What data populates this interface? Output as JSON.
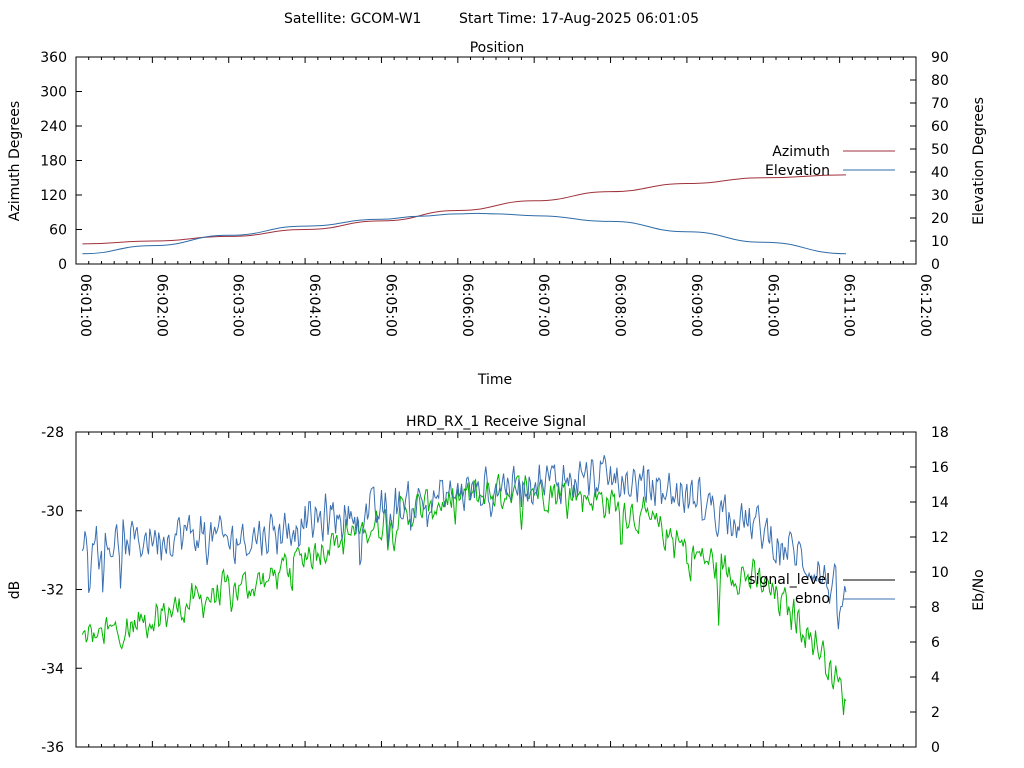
{
  "header": {
    "satellite_label": "Satellite: GCOM-W1",
    "start_time_label": "Start Time: 17-Aug-2025 06:01:05"
  },
  "colors": {
    "azimuth": "#a0323c",
    "elevation": "#2f6ca8",
    "signal_level": "#000000",
    "ebno_line": "#3a6fb0",
    "green_trace": "#00b400"
  },
  "chart_data": [
    {
      "type": "line",
      "title": "Position",
      "xlabel": "Time",
      "ylabel": "Azimuth Degrees",
      "y2label": "Elevation Degrees",
      "xlim": [
        "06:01:00",
        "06:12:00"
      ],
      "ylim": [
        0,
        360
      ],
      "y2lim": [
        0,
        90
      ],
      "xticks": [
        "06:01:00",
        "06:02:00",
        "06:03:00",
        "06:04:00",
        "06:05:00",
        "06:06:00",
        "06:07:00",
        "06:08:00",
        "06:09:00",
        "06:10:00",
        "06:11:00",
        "06:12:00"
      ],
      "yticks": [
        "0",
        "60",
        "120",
        "180",
        "240",
        "300",
        "360"
      ],
      "y2ticks": [
        "0",
        "10",
        "20",
        "30",
        "40",
        "50",
        "60",
        "70",
        "80",
        "90"
      ],
      "legend_position": "right",
      "series": [
        {
          "name": "Azimuth",
          "axis": "y",
          "x": [
            "06:01:05",
            "06:02:00",
            "06:03:00",
            "06:04:00",
            "06:05:00",
            "06:06:00",
            "06:07:00",
            "06:08:00",
            "06:09:00",
            "06:10:00",
            "06:11:05"
          ],
          "values": [
            35,
            40,
            48,
            60,
            75,
            93,
            110,
            126,
            140,
            150,
            155
          ]
        },
        {
          "name": "Elevation",
          "axis": "y2",
          "x": [
            "06:01:05",
            "06:02:00",
            "06:03:00",
            "06:04:00",
            "06:05:00",
            "06:05:30",
            "06:06:00",
            "06:06:15",
            "06:06:30",
            "06:07:00",
            "06:08:00",
            "06:09:00",
            "06:10:00",
            "06:11:05"
          ],
          "values": [
            4.5,
            8,
            12.5,
            16.5,
            19.5,
            20.8,
            21.8,
            22,
            21.8,
            21,
            18.5,
            14,
            9.5,
            4.5
          ]
        }
      ]
    },
    {
      "type": "line",
      "title": "HRD_RX_1 Receive Signal",
      "ylabel": "dB",
      "y2label": "Eb/No",
      "xlim": [
        "06:01:00",
        "06:12:00"
      ],
      "ylim": [
        -36,
        -28
      ],
      "y2lim": [
        0,
        18
      ],
      "yticks": [
        "-36",
        "-34",
        "-32",
        "-30",
        "-28"
      ],
      "y2ticks": [
        "0",
        "2",
        "4",
        "6",
        "8",
        "10",
        "12",
        "14",
        "16",
        "18"
      ],
      "legend_position": "right",
      "legend": [
        "signal_level",
        "ebno"
      ],
      "series": [
        {
          "name": "ebno",
          "axis": "y2",
          "x": [
            "06:01:05",
            "06:01:30",
            "06:02:00",
            "06:02:30",
            "06:03:00",
            "06:03:30",
            "06:04:00",
            "06:04:30",
            "06:05:00",
            "06:05:30",
            "06:06:00",
            "06:06:30",
            "06:07:00",
            "06:07:30",
            "06:08:00",
            "06:08:30",
            "06:09:00",
            "06:09:30",
            "06:10:00",
            "06:10:30",
            "06:10:50",
            "06:11:05"
          ],
          "values": [
            11.8,
            11.6,
            12,
            12.2,
            11.8,
            12.2,
            12.8,
            13.2,
            13.4,
            14,
            14.5,
            15,
            15.2,
            15.3,
            15.3,
            14.9,
            14.3,
            13.6,
            12.3,
            10.8,
            9.5,
            8
          ]
        },
        {
          "axis": "y2",
          "x": [
            "06:01:05",
            "06:01:30",
            "06:02:00",
            "06:02:30",
            "06:03:00",
            "06:03:30",
            "06:04:00",
            "06:04:30",
            "06:05:00",
            "06:05:30",
            "06:06:00",
            "06:06:30",
            "06:07:00",
            "06:07:30",
            "06:08:00",
            "06:08:30",
            "06:09:00",
            "06:09:30",
            "06:10:00",
            "06:10:30",
            "06:10:50",
            "06:11:05"
          ],
          "values": [
            6.2,
            6.6,
            7.4,
            8.2,
            9,
            9.5,
            11,
            12,
            12.8,
            13.6,
            14.2,
            14.6,
            14.7,
            14.5,
            14,
            12.9,
            11.2,
            10.2,
            9.3,
            7.1,
            5.0,
            2.5
          ]
        }
      ]
    }
  ]
}
